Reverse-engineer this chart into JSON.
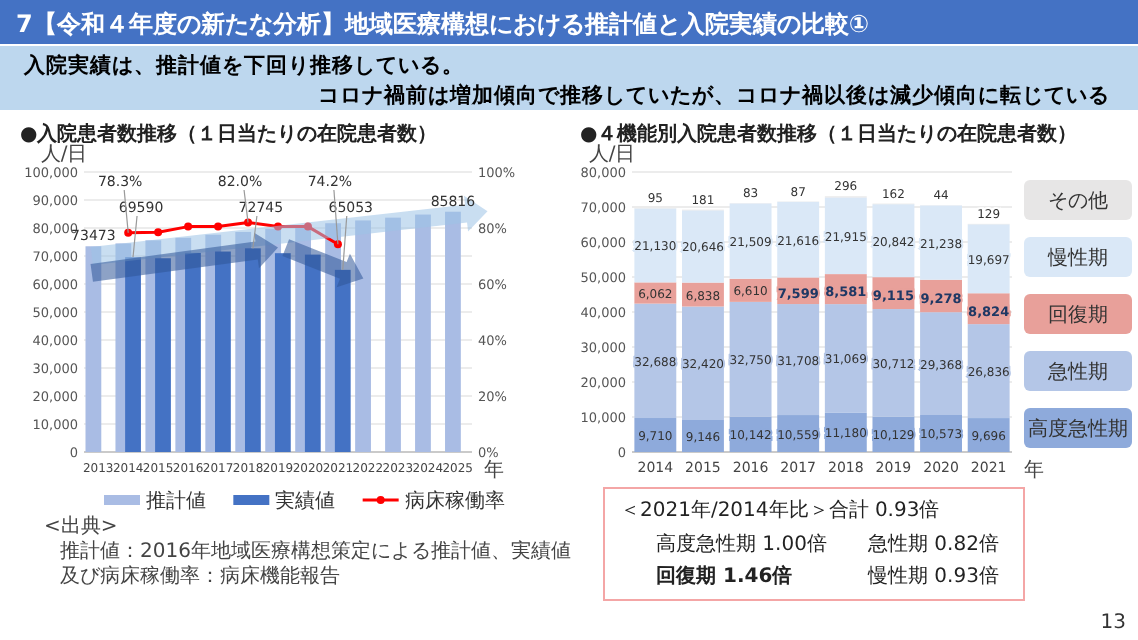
{
  "chart_data": [
    {
      "type": "other",
      "title": "7【令和４年度の新たな分析】地域医療構想における推計値と入院実績の比較①",
      "annotations": [
        "入院実績は、推計値を下回り推移している。",
        "コロナ禍前は増加傾向で推移していたが、コロナ禍以後は減少傾向に転じている",
        "13"
      ]
    },
    {
      "type": "bar",
      "title": "●入院患者数推移（１日当たりの在院患者数）",
      "ylabel": "人/日",
      "xlabel": "年",
      "categories": [
        "2013",
        "2014",
        "2015",
        "2016",
        "2017",
        "2018",
        "2019",
        "2020",
        "2021",
        "2022",
        "2023",
        "2024",
        "2025"
      ],
      "series": [
        {
          "name": "推計値",
          "color": "#a9bce4",
          "values": [
            73473,
            74500,
            75600,
            76500,
            77600,
            78600,
            79700,
            80700,
            81700,
            82700,
            83700,
            84800,
            85816
          ],
          "value_labels": [
            "73473",
            null,
            null,
            null,
            null,
            null,
            null,
            null,
            null,
            null,
            null,
            null,
            "85816"
          ]
        },
        {
          "name": "実績値",
          "color": "#4472c4",
          "values": [
            null,
            69590,
            69200,
            71100,
            71600,
            72745,
            71000,
            70500,
            65053,
            null,
            null,
            null,
            null
          ],
          "value_labels": [
            null,
            "69590",
            null,
            null,
            null,
            "72745",
            null,
            null,
            "65053",
            null,
            null,
            null,
            null
          ]
        },
        {
          "name": "病床稼働率",
          "type": "line",
          "axis": "y2",
          "color": "#ff0000",
          "marker": "circle",
          "values": [
            null,
            78.3,
            78.5,
            80.5,
            80.5,
            82.0,
            80.5,
            80.5,
            74.2,
            null,
            null,
            null,
            null
          ],
          "value_labels": [
            null,
            "78.3%",
            null,
            null,
            null,
            "82.0%",
            null,
            null,
            "74.2%",
            null,
            null,
            null,
            null
          ]
        }
      ],
      "ylim": [
        0,
        100000
      ],
      "yticks": [
        {
          "value": 0,
          "label": "0"
        },
        {
          "value": 10000,
          "label": "10,000"
        },
        {
          "value": 20000,
          "label": "20,000"
        },
        {
          "value": 30000,
          "label": "30,000"
        },
        {
          "value": 40000,
          "label": "40,000"
        },
        {
          "value": 50000,
          "label": "50,000"
        },
        {
          "value": 60000,
          "label": "60,000"
        },
        {
          "value": 70000,
          "label": "70,000"
        },
        {
          "value": 80000,
          "label": "80,000"
        },
        {
          "value": 90000,
          "label": "90,000"
        },
        {
          "value": 100000,
          "label": "100,000"
        }
      ],
      "y2lim": [
        0,
        100
      ],
      "y2ticks": [
        {
          "value": 0,
          "label": "0%"
        },
        {
          "value": 20,
          "label": "20%"
        },
        {
          "value": 40,
          "label": "40%"
        },
        {
          "value": 60,
          "label": "60%"
        },
        {
          "value": 80,
          "label": "80%"
        },
        {
          "value": 100,
          "label": "100%"
        }
      ],
      "grid": "y",
      "legend": "bottom",
      "annotations": [
        "<出典>",
        "推計値：2016年地域医療構想策定による推計値、実績値及び病床稼働率：病床機能報告"
      ]
    },
    {
      "type": "bar",
      "title": "●４機能別入院患者数推移（１日当たりの在院患者数）",
      "ylabel": "人/日",
      "xlabel": "年",
      "stacked": true,
      "categories": [
        "2014",
        "2015",
        "2016",
        "2017",
        "2018",
        "2019",
        "2020",
        "2021"
      ],
      "series": [
        {
          "name": "高度急性期",
          "color": "#8eaadb",
          "values": [
            9710,
            9146,
            10142,
            10559,
            11180,
            10129,
            10573,
            9696
          ],
          "value_labels": [
            "9,710",
            "9,146",
            "10,142",
            "10,559",
            "11,180",
            "10,129",
            "10,573",
            "9,696"
          ]
        },
        {
          "name": "急性期",
          "color": "#b4c6e7",
          "values": [
            32688,
            32420,
            32750,
            31708,
            31069,
            30712,
            29368,
            26836
          ],
          "value_labels": [
            "32,688",
            "32,420",
            "32,750",
            "31,708",
            "31,069",
            "30,712",
            "29,368",
            "26,836"
          ]
        },
        {
          "name": "回復期",
          "color": "#e8a09a",
          "values": [
            6062,
            6838,
            6610,
            7599,
            8581,
            9115,
            9278,
            8824
          ],
          "value_labels": [
            "6,062",
            "6,838",
            "6,610",
            "7,599",
            "8,581",
            "9,115",
            "9,278",
            "8,824"
          ]
        },
        {
          "name": "慢性期",
          "color": "#dae8f7",
          "values": [
            21130,
            20646,
            21509,
            21616,
            21915,
            20842,
            21238,
            19697
          ],
          "value_labels": [
            "21,130",
            "20,646",
            "21,509",
            "21,616",
            "21,915",
            "20,842",
            "21,238",
            "19,697"
          ]
        },
        {
          "name": "その他",
          "color": "#e7e6e6",
          "values": [
            95,
            181,
            83,
            87,
            296,
            162,
            44,
            129
          ],
          "value_labels": [
            "95",
            "181",
            "83",
            "87",
            "296",
            "162",
            "44",
            "129"
          ]
        }
      ],
      "ylim": [
        0,
        80000
      ],
      "yticks": [
        {
          "value": 0,
          "label": "0"
        },
        {
          "value": 10000,
          "label": "10,000"
        },
        {
          "value": 20000,
          "label": "20,000"
        },
        {
          "value": 30000,
          "label": "30,000"
        },
        {
          "value": 40000,
          "label": "40,000"
        },
        {
          "value": 50000,
          "label": "50,000"
        },
        {
          "value": 60000,
          "label": "60,000"
        },
        {
          "value": 70000,
          "label": "70,000"
        },
        {
          "value": 80000,
          "label": "80,000"
        }
      ],
      "grid": "y",
      "legend": "right",
      "annotations": [
        "＜2021年/2014年比＞合計 0.93倍",
        "高度急性期 1.00倍",
        "急性期 0.82倍",
        "回復期 1.46倍",
        "慢性期 0.93倍"
      ]
    }
  ]
}
